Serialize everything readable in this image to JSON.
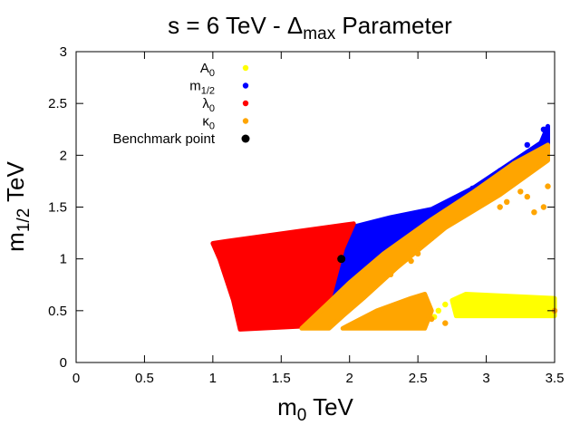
{
  "chart_data": {
    "type": "scatter",
    "title": {
      "prefix": "s = 6 TeV - Δ",
      "sub": "max",
      "suffix": " Parameter"
    },
    "xlabel": {
      "base": "m",
      "sub": "0",
      "suffix": " TeV"
    },
    "ylabel": {
      "base": "m",
      "sub": "1/2",
      "suffix": " TeV"
    },
    "xlim": [
      0,
      3.5
    ],
    "ylim": [
      0,
      3
    ],
    "xticks": [
      "0",
      "0.5",
      "1",
      "1.5",
      "2",
      "2.5",
      "3",
      "3.5"
    ],
    "yticks": [
      "0",
      "0.5",
      "1",
      "1.5",
      "2",
      "2.5",
      "3"
    ],
    "grid": false,
    "legend_position": "top-left",
    "series": [
      {
        "name": "A",
        "name_sub": "0",
        "color": "#ffff00",
        "regions": [
          [
            [
              2.78,
              0.45
            ],
            [
              3.5,
              0.45
            ],
            [
              3.5,
              0.62
            ],
            [
              2.85,
              0.66
            ],
            [
              2.75,
              0.6
            ]
          ]
        ],
        "points": [
          [
            2.62,
            0.44
          ],
          [
            2.65,
            0.5
          ],
          [
            2.7,
            0.56
          ]
        ]
      },
      {
        "name": "m",
        "name_sub": "1/2",
        "color": "#0000ff",
        "regions": [
          [
            [
              1.85,
              0.6
            ],
            [
              2.0,
              1.3
            ],
            [
              2.3,
              1.4
            ],
            [
              2.6,
              1.48
            ],
            [
              2.9,
              1.68
            ],
            [
              3.15,
              1.9
            ],
            [
              3.4,
              2.12
            ],
            [
              3.45,
              2.28
            ],
            [
              3.45,
              2.1
            ],
            [
              3.2,
              1.92
            ],
            [
              2.9,
              1.64
            ],
            [
              2.6,
              1.38
            ],
            [
              2.25,
              1.05
            ],
            [
              2.0,
              0.77
            ]
          ]
        ],
        "points": [
          [
            3.42,
            2.25
          ],
          [
            3.44,
            2.2
          ],
          [
            3.3,
            2.1
          ],
          [
            3.1,
            1.85
          ],
          [
            2.9,
            1.68
          ]
        ]
      },
      {
        "name": "λ",
        "name_sub": "0",
        "color": "#ff0000",
        "regions": [
          [
            [
              1.0,
              1.15
            ],
            [
              1.1,
              1.17
            ],
            [
              2.03,
              1.34
            ],
            [
              1.95,
              1.1
            ],
            [
              1.85,
              0.6
            ],
            [
              1.65,
              0.35
            ],
            [
              1.2,
              0.32
            ],
            [
              1.15,
              0.6
            ],
            [
              1.05,
              1.0
            ]
          ]
        ],
        "points": []
      },
      {
        "name": "κ",
        "name_sub": "0",
        "color": "#ffa500",
        "regions": [
          [
            [
              1.65,
              0.33
            ],
            [
              1.85,
              0.58
            ],
            [
              2.0,
              0.77
            ],
            [
              2.25,
              1.05
            ],
            [
              2.6,
              1.38
            ],
            [
              2.9,
              1.64
            ],
            [
              3.2,
              1.92
            ],
            [
              3.45,
              2.1
            ],
            [
              3.45,
              1.95
            ],
            [
              3.1,
              1.62
            ],
            [
              2.7,
              1.3
            ],
            [
              2.35,
              0.92
            ],
            [
              2.1,
              0.62
            ],
            [
              1.95,
              0.45
            ],
            [
              1.85,
              0.33
            ]
          ],
          [
            [
              1.95,
              0.33
            ],
            [
              2.2,
              0.5
            ],
            [
              2.45,
              0.62
            ],
            [
              2.55,
              0.66
            ],
            [
              2.6,
              0.5
            ],
            [
              2.55,
              0.33
            ]
          ]
        ],
        "points": [
          [
            3.45,
            1.7
          ],
          [
            3.42,
            1.5
          ],
          [
            3.35,
            1.45
          ],
          [
            3.3,
            1.6
          ],
          [
            3.25,
            1.65
          ],
          [
            3.15,
            1.55
          ],
          [
            3.1,
            1.5
          ],
          [
            2.95,
            1.55
          ],
          [
            2.8,
            1.4
          ],
          [
            2.6,
            1.2
          ],
          [
            2.5,
            1.05
          ],
          [
            2.45,
            0.98
          ],
          [
            2.3,
            0.85
          ],
          [
            2.15,
            0.7
          ],
          [
            2.7,
            0.38
          ],
          [
            2.6,
            0.42
          ],
          [
            3.5,
            0.5
          ]
        ]
      }
    ],
    "benchmark": {
      "name": "Benchmark point",
      "x": 1.94,
      "y": 1.0,
      "color": "#000000"
    }
  }
}
